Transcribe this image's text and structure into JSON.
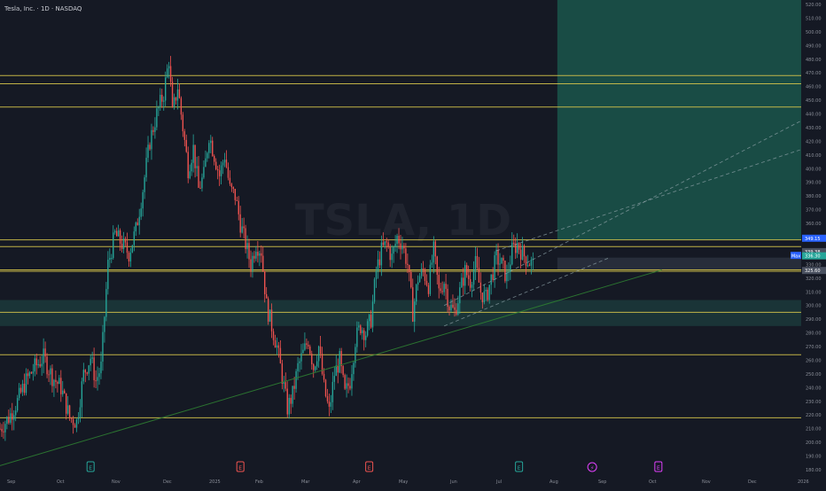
{
  "header": {
    "symbol_title": "Tesla, Inc. · 1D · NASDAQ"
  },
  "watermark": "TSLA, 1D",
  "colors": {
    "background": "#151924",
    "up": "#26a69a",
    "down": "#ef5350",
    "level_line": "#d4c34a",
    "trend_line": "#8fa3a8",
    "green_line": "#2e7d32",
    "target_zone": "#1b5e50",
    "demand_zone": "#1f4a47",
    "axis_text": "#8b8f99",
    "label_blue": "#2962ff",
    "label_green": "#26a69a",
    "label_gray": "#4a5160",
    "event_earnings": "#ef5350",
    "event_dividend": "#26a69a",
    "event_split": "#e040fb"
  },
  "chart_data": {
    "type": "candlestick",
    "title": "Tesla, Inc. · 1D · NASDAQ",
    "ylim": [
      180,
      520
    ],
    "y_ticks": [
      180,
      190,
      200,
      210,
      220,
      230,
      240,
      250,
      260,
      270,
      280,
      290,
      300,
      310,
      320,
      330,
      340,
      350,
      360,
      370,
      380,
      390,
      400,
      410,
      420,
      430,
      440,
      450,
      460,
      470,
      480,
      490,
      500,
      510,
      520
    ],
    "x_ticks": [
      "Sep",
      "Oct",
      "Nov",
      "Dec",
      "2025",
      "Feb",
      "Mar",
      "Apr",
      "May",
      "Jun",
      "Jul",
      "Aug",
      "Sep",
      "Oct",
      "Nov",
      "Dec",
      "2026"
    ],
    "grid": false,
    "close_points": [
      {
        "t": 0,
        "c": 210
      },
      {
        "t": 5,
        "c": 218
      },
      {
        "t": 10,
        "c": 230
      },
      {
        "t": 15,
        "c": 245
      },
      {
        "t": 20,
        "c": 255
      },
      {
        "t": 25,
        "c": 262
      },
      {
        "t": 30,
        "c": 248
      },
      {
        "t": 35,
        "c": 240
      },
      {
        "t": 40,
        "c": 218
      },
      {
        "t": 44,
        "c": 215
      },
      {
        "t": 48,
        "c": 250
      },
      {
        "t": 52,
        "c": 262
      },
      {
        "t": 55,
        "c": 245
      },
      {
        "t": 58,
        "c": 255
      },
      {
        "t": 62,
        "c": 330
      },
      {
        "t": 66,
        "c": 352
      },
      {
        "t": 70,
        "c": 345
      },
      {
        "t": 74,
        "c": 338
      },
      {
        "t": 78,
        "c": 355
      },
      {
        "t": 82,
        "c": 385
      },
      {
        "t": 86,
        "c": 420
      },
      {
        "t": 90,
        "c": 440
      },
      {
        "t": 94,
        "c": 455
      },
      {
        "t": 97,
        "c": 480
      },
      {
        "t": 99,
        "c": 440
      },
      {
        "t": 102,
        "c": 460
      },
      {
        "t": 105,
        "c": 430
      },
      {
        "t": 108,
        "c": 400
      },
      {
        "t": 111,
        "c": 415
      },
      {
        "t": 114,
        "c": 385
      },
      {
        "t": 117,
        "c": 395
      },
      {
        "t": 120,
        "c": 425
      },
      {
        "t": 123,
        "c": 410
      },
      {
        "t": 126,
        "c": 395
      },
      {
        "t": 129,
        "c": 410
      },
      {
        "t": 132,
        "c": 385
      },
      {
        "t": 135,
        "c": 380
      },
      {
        "t": 138,
        "c": 360
      },
      {
        "t": 141,
        "c": 345
      },
      {
        "t": 144,
        "c": 330
      },
      {
        "t": 147,
        "c": 345
      },
      {
        "t": 150,
        "c": 340
      },
      {
        "t": 153,
        "c": 300
      },
      {
        "t": 156,
        "c": 285
      },
      {
        "t": 159,
        "c": 270
      },
      {
        "t": 162,
        "c": 248
      },
      {
        "t": 165,
        "c": 225
      },
      {
        "t": 168,
        "c": 235
      },
      {
        "t": 171,
        "c": 255
      },
      {
        "t": 174,
        "c": 265
      },
      {
        "t": 177,
        "c": 275
      },
      {
        "t": 180,
        "c": 255
      },
      {
        "t": 183,
        "c": 270
      },
      {
        "t": 186,
        "c": 240
      },
      {
        "t": 189,
        "c": 222
      },
      {
        "t": 192,
        "c": 250
      },
      {
        "t": 195,
        "c": 260
      },
      {
        "t": 198,
        "c": 235
      },
      {
        "t": 201,
        "c": 245
      },
      {
        "t": 204,
        "c": 275
      },
      {
        "t": 207,
        "c": 285
      },
      {
        "t": 210,
        "c": 280
      },
      {
        "t": 213,
        "c": 290
      },
      {
        "t": 216,
        "c": 325
      },
      {
        "t": 219,
        "c": 340
      },
      {
        "t": 222,
        "c": 345
      },
      {
        "t": 225,
        "c": 335
      },
      {
        "t": 228,
        "c": 350
      },
      {
        "t": 231,
        "c": 345
      },
      {
        "t": 234,
        "c": 330
      },
      {
        "t": 237,
        "c": 295
      },
      {
        "t": 240,
        "c": 320
      },
      {
        "t": 243,
        "c": 325
      },
      {
        "t": 246,
        "c": 315
      },
      {
        "t": 249,
        "c": 340
      },
      {
        "t": 252,
        "c": 310
      },
      {
        "t": 255,
        "c": 318
      },
      {
        "t": 258,
        "c": 300
      },
      {
        "t": 261,
        "c": 295
      },
      {
        "t": 264,
        "c": 310
      },
      {
        "t": 267,
        "c": 325
      },
      {
        "t": 270,
        "c": 318
      },
      {
        "t": 273,
        "c": 330
      },
      {
        "t": 276,
        "c": 310
      },
      {
        "t": 279,
        "c": 305
      },
      {
        "t": 282,
        "c": 320
      },
      {
        "t": 285,
        "c": 335
      },
      {
        "t": 288,
        "c": 330
      },
      {
        "t": 291,
        "c": 320
      },
      {
        "t": 294,
        "c": 340
      },
      {
        "t": 297,
        "c": 345
      },
      {
        "t": 300,
        "c": 338
      },
      {
        "t": 303,
        "c": 333
      },
      {
        "t": 306,
        "c": 330
      }
    ],
    "horizontal_levels": [
      468,
      462,
      445,
      348,
      343,
      326,
      325,
      295,
      264,
      218
    ],
    "trend_lines": [
      {
        "from": {
          "t": 0,
          "c": 183
        },
        "to": {
          "t": 380,
          "c": 326
        },
        "style": "solid-green"
      },
      {
        "from": {
          "t": 255,
          "c": 300
        },
        "to": {
          "t": 460,
          "c": 435
        },
        "style": "dashed"
      },
      {
        "from": {
          "t": 285,
          "c": 340
        },
        "to": {
          "t": 460,
          "c": 414
        },
        "style": "dashed"
      },
      {
        "from": {
          "t": 255,
          "c": 285
        },
        "to": {
          "t": 350,
          "c": 335
        },
        "style": "dashed"
      }
    ],
    "zones": [
      {
        "name": "target",
        "t_start": 320,
        "t_end": 460,
        "top": 525,
        "bottom": 348
      },
      {
        "name": "demand",
        "t_start": 0,
        "t_end": 460,
        "top": 304,
        "bottom": 285
      },
      {
        "name": "current",
        "t_start": 320,
        "t_end": 460,
        "top": 335,
        "bottom": 326
      }
    ],
    "price_labels": [
      {
        "value": 349.15,
        "text": "349.15",
        "kind": "blue"
      },
      {
        "value": 339.38,
        "text": "339.38",
        "kind": "gray"
      },
      {
        "value": 336.3,
        "text": "336.30",
        "kind": "green"
      },
      {
        "value": 325.6,
        "text": "325.60",
        "kind": "gray"
      }
    ],
    "marker_label": "Max",
    "events": [
      {
        "t": 52,
        "kind": "dividend",
        "label": "E"
      },
      {
        "t": 138,
        "kind": "earnings",
        "label": "E"
      },
      {
        "t": 212,
        "kind": "earnings",
        "label": "E"
      },
      {
        "t": 298,
        "kind": "dividend",
        "label": "E"
      },
      {
        "t": 340,
        "kind": "split",
        "label": "⚡"
      },
      {
        "t": 378,
        "kind": "split",
        "label": "E"
      }
    ]
  }
}
